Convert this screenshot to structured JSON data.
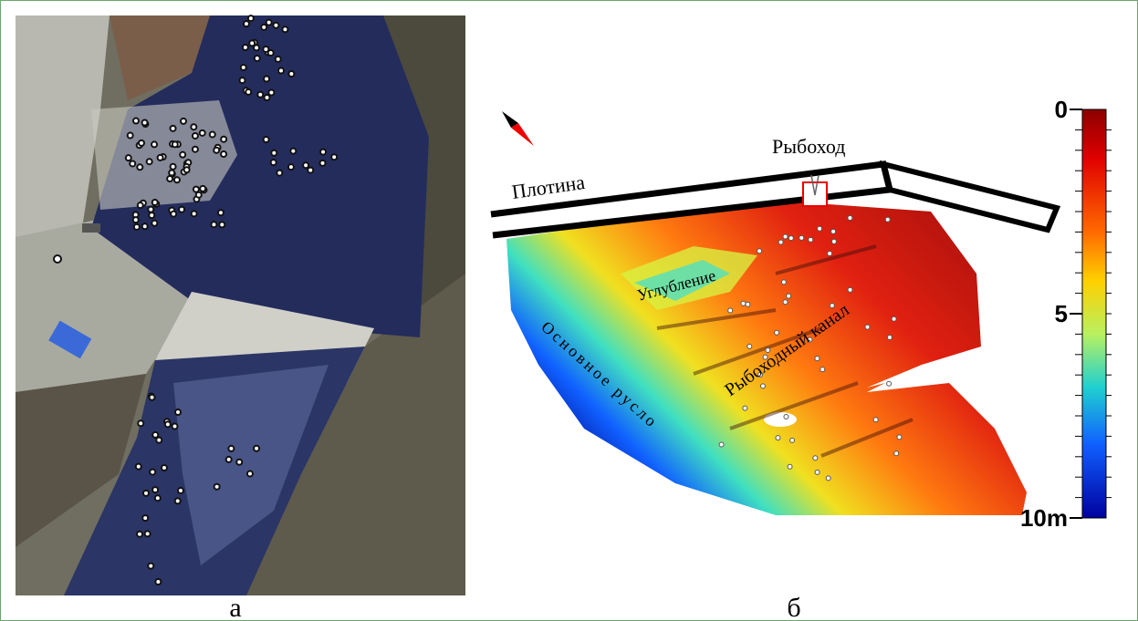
{
  "panel_a": {
    "label": "а"
  },
  "panel_b": {
    "label": "б",
    "annotations": {
      "dam": "Плотина",
      "fishway": "Рыбоход",
      "deepening": "Углубление",
      "fish_channel": "Рыбоходный канал",
      "main_channel": "Основное русло"
    },
    "colorbar": {
      "lim": [
        0,
        10
      ],
      "ticks": [
        0,
        5,
        {
          "value": 10,
          "label": "10m"
        }
      ]
    }
  }
}
